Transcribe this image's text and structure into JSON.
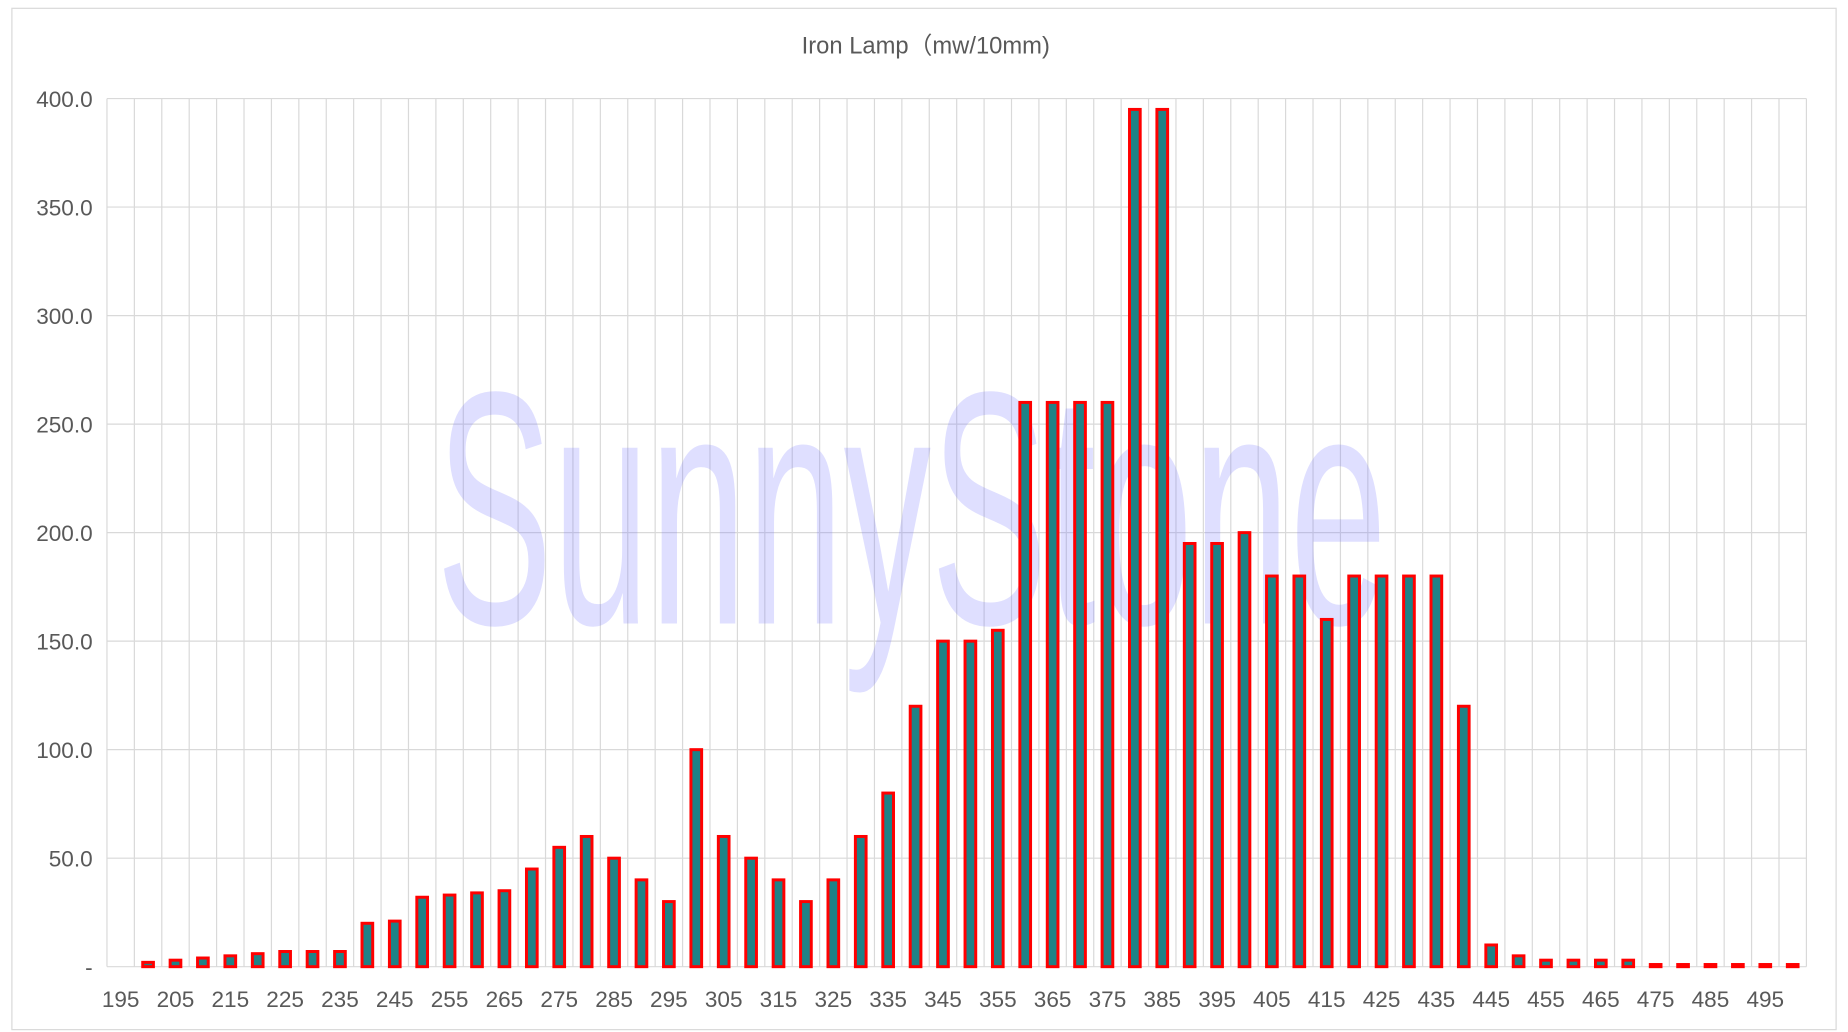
{
  "chart_data": {
    "type": "bar",
    "title": "Iron Lamp（mw/10mm)",
    "watermark": "SunnyStone",
    "categories": [
      "195",
      null,
      "205",
      null,
      "215",
      null,
      "225",
      null,
      "235",
      null,
      "245",
      null,
      "255",
      null,
      "265",
      null,
      "275",
      null,
      "285",
      null,
      "295",
      null,
      "305",
      null,
      "315",
      null,
      "325",
      null,
      "335",
      null,
      "345",
      null,
      "355",
      null,
      "365",
      null,
      "375",
      null,
      "385",
      null,
      "395",
      null,
      "405",
      null,
      "415",
      null,
      "425",
      null,
      "435",
      null,
      "445",
      null,
      "455",
      null,
      "465",
      null,
      "475",
      null,
      "485",
      null,
      "495",
      null
    ],
    "values": [
      0,
      2,
      3,
      4,
      5,
      6,
      7,
      7,
      7,
      20,
      21,
      32,
      33,
      34,
      35,
      45,
      55,
      60,
      50,
      40,
      30,
      100,
      60,
      50,
      40,
      30,
      40,
      60,
      80,
      120,
      150,
      150,
      155,
      260,
      260,
      260,
      260,
      395,
      395,
      195,
      195,
      200,
      180,
      180,
      160,
      180,
      180,
      180,
      180,
      120,
      10,
      5,
      3,
      3,
      3,
      3,
      1,
      1,
      1,
      1,
      1,
      1
    ],
    "color": "#1f8287",
    "edge_color": "#ff0000",
    "ylim": [
      0,
      400
    ],
    "yticks": [
      {
        "value": 0,
        "label": "-"
      },
      {
        "value": 50,
        "label": "50.0"
      },
      {
        "value": 100,
        "label": "100.0"
      },
      {
        "value": 150,
        "label": "150.0"
      },
      {
        "value": 200,
        "label": "200.0"
      },
      {
        "value": 250,
        "label": "250.0"
      },
      {
        "value": 300,
        "label": "300.0"
      },
      {
        "value": 350,
        "label": "350.0"
      },
      {
        "value": 400,
        "label": "400.0"
      }
    ],
    "grid": true
  }
}
